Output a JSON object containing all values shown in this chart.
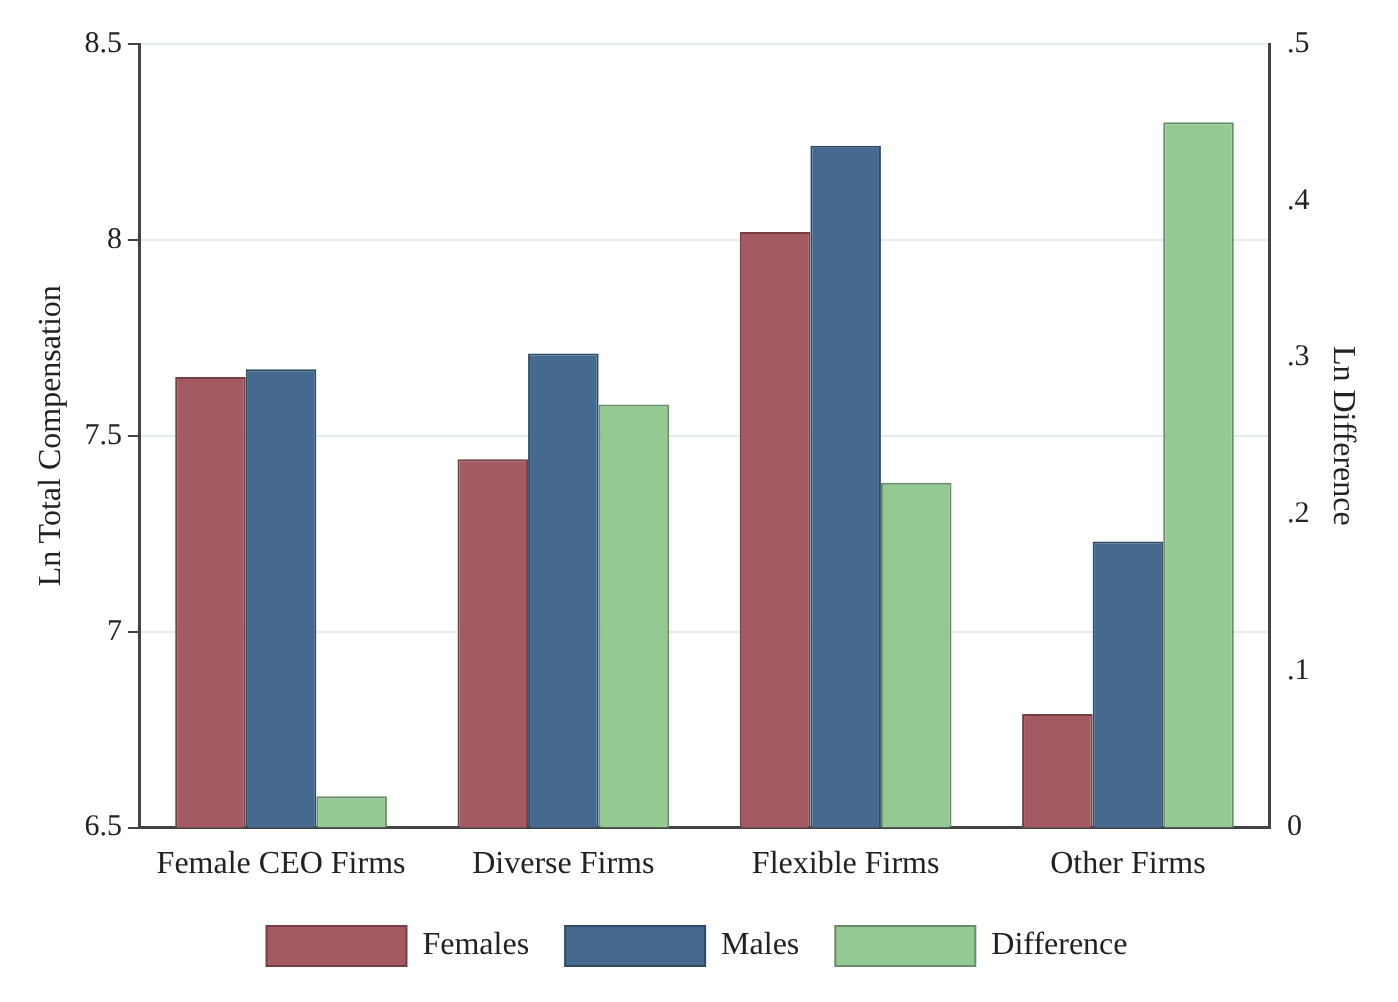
{
  "chart_data": {
    "type": "bar",
    "ylabel": "Ln Total Compensation",
    "y2label": "Ln Difference",
    "categories": [
      "Female CEO Firms",
      "Diverse Firms",
      "Flexible Firms",
      "Other Firms"
    ],
    "series": [
      {
        "name": "Females",
        "color": "#a45a62",
        "values": [
          7.65,
          7.44,
          8.02,
          6.79
        ]
      },
      {
        "name": "Males",
        "color": "#466a8f",
        "values": [
          7.67,
          7.71,
          8.24,
          7.23
        ]
      },
      {
        "name": "Difference",
        "color": "#94c994",
        "axis": "y2",
        "values": [
          0.02,
          0.27,
          0.22,
          0.45
        ]
      }
    ],
    "ylim": [
      6.5,
      8.5
    ],
    "yticks": [
      6.5,
      7,
      7.5,
      8,
      8.5
    ],
    "y2lim": [
      0,
      0.5
    ],
    "y2ticks": [
      0,
      {
        "value": 0.1,
        "label": ".1"
      },
      {
        "value": 0.2,
        "label": ".2"
      },
      {
        "value": 0.3,
        "label": ".3"
      },
      {
        "value": 0.4,
        "label": ".4"
      },
      {
        "value": 0.5,
        "label": ".5"
      }
    ],
    "grid": "y",
    "legend": "bottom"
  }
}
